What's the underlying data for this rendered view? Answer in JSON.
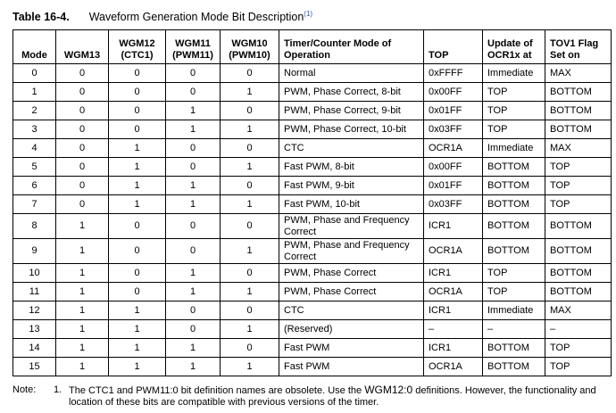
{
  "title": {
    "number": "Table 16-4.",
    "text": "Waveform Generation Mode Bit Description",
    "superscript": "(1)"
  },
  "table": {
    "header": [
      "Mode",
      "WGM13",
      "WGM12 (CTC1)",
      "WGM11 (PWM11)",
      "WGM10 (PWM10)",
      "Timer/Counter Mode of Operation",
      "TOP",
      "Update of OCR1x at",
      "TOV1 Flag Set on"
    ],
    "rows": [
      [
        "0",
        "0",
        "0",
        "0",
        "0",
        "Normal",
        "0xFFFF",
        "Immediate",
        "MAX"
      ],
      [
        "1",
        "0",
        "0",
        "0",
        "1",
        "PWM, Phase Correct, 8-bit",
        "0x00FF",
        "TOP",
        "BOTTOM"
      ],
      [
        "2",
        "0",
        "0",
        "1",
        "0",
        "PWM, Phase Correct, 9-bit",
        "0x01FF",
        "TOP",
        "BOTTOM"
      ],
      [
        "3",
        "0",
        "0",
        "1",
        "1",
        "PWM, Phase Correct, 10-bit",
        "0x03FF",
        "TOP",
        "BOTTOM"
      ],
      [
        "4",
        "0",
        "1",
        "0",
        "0",
        "CTC",
        "OCR1A",
        "Immediate",
        "MAX"
      ],
      [
        "5",
        "0",
        "1",
        "0",
        "1",
        "Fast PWM, 8-bit",
        "0x00FF",
        "BOTTOM",
        "TOP"
      ],
      [
        "6",
        "0",
        "1",
        "1",
        "0",
        "Fast PWM, 9-bit",
        "0x01FF",
        "BOTTOM",
        "TOP"
      ],
      [
        "7",
        "0",
        "1",
        "1",
        "1",
        "Fast PWM, 10-bit",
        "0x03FF",
        "BOTTOM",
        "TOP"
      ],
      [
        "8",
        "1",
        "0",
        "0",
        "0",
        "PWM, Phase and Frequency Correct",
        "ICR1",
        "BOTTOM",
        "BOTTOM"
      ],
      [
        "9",
        "1",
        "0",
        "0",
        "1",
        "PWM, Phase and Frequency Correct",
        "OCR1A",
        "BOTTOM",
        "BOTTOM"
      ],
      [
        "10",
        "1",
        "0",
        "1",
        "0",
        "PWM, Phase Correct",
        "ICR1",
        "TOP",
        "BOTTOM"
      ],
      [
        "11",
        "1",
        "0",
        "1",
        "1",
        "PWM, Phase Correct",
        "OCR1A",
        "TOP",
        "BOTTOM"
      ],
      [
        "12",
        "1",
        "1",
        "0",
        "0",
        "CTC",
        "ICR1",
        "Immediate",
        "MAX"
      ],
      [
        "13",
        "1",
        "1",
        "0",
        "1",
        "(Reserved)",
        "–",
        "–",
        "–"
      ],
      [
        "14",
        "1",
        "1",
        "1",
        "0",
        "Fast PWM",
        "ICR1",
        "BOTTOM",
        "TOP"
      ],
      [
        "15",
        "1",
        "1",
        "1",
        "1",
        "Fast PWM",
        "OCR1A",
        "BOTTOM",
        "TOP"
      ]
    ]
  },
  "note": {
    "label": "Note:",
    "number": "1.",
    "text_before": "The CTC1 and PWM11:0 bit definition names are obsolete. Use the ",
    "code": "WGM12:0",
    "text_after": " definitions. However, the functionality and location of these bits are compatible with previous versions of the timer."
  }
}
